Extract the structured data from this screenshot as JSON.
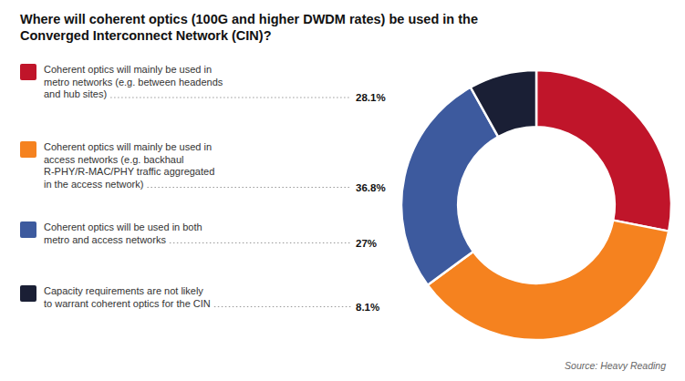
{
  "chart_data": {
    "type": "donut",
    "title": "Where will coherent optics (100G and higher DWDM rates) be used in the\nConverged Interconnect Network (CIN)?",
    "categories": [
      "Coherent optics will mainly be used in\nmetro networks (e.g. between headends\nand hub sites)",
      "Coherent optics will mainly be used in\naccess networks (e.g. backhaul\nR-PHY/R-MAC/PHY traffic aggregated\nin the access network)",
      "Coherent optics will be used in both\nmetro and access networks",
      "Capacity requirements are not likely\nto warrant coherent optics for the CIN"
    ],
    "values": [
      28.1,
      36.8,
      27.0,
      8.1
    ],
    "value_labels": [
      "28.1%",
      "36.8%",
      "27%",
      "8.1%"
    ],
    "colors": [
      "#c0152a",
      "#f5821f",
      "#3d5a9e",
      "#1a1f35"
    ],
    "legend": "left",
    "annotations": [
      "Source: Heavy Reading"
    ]
  }
}
